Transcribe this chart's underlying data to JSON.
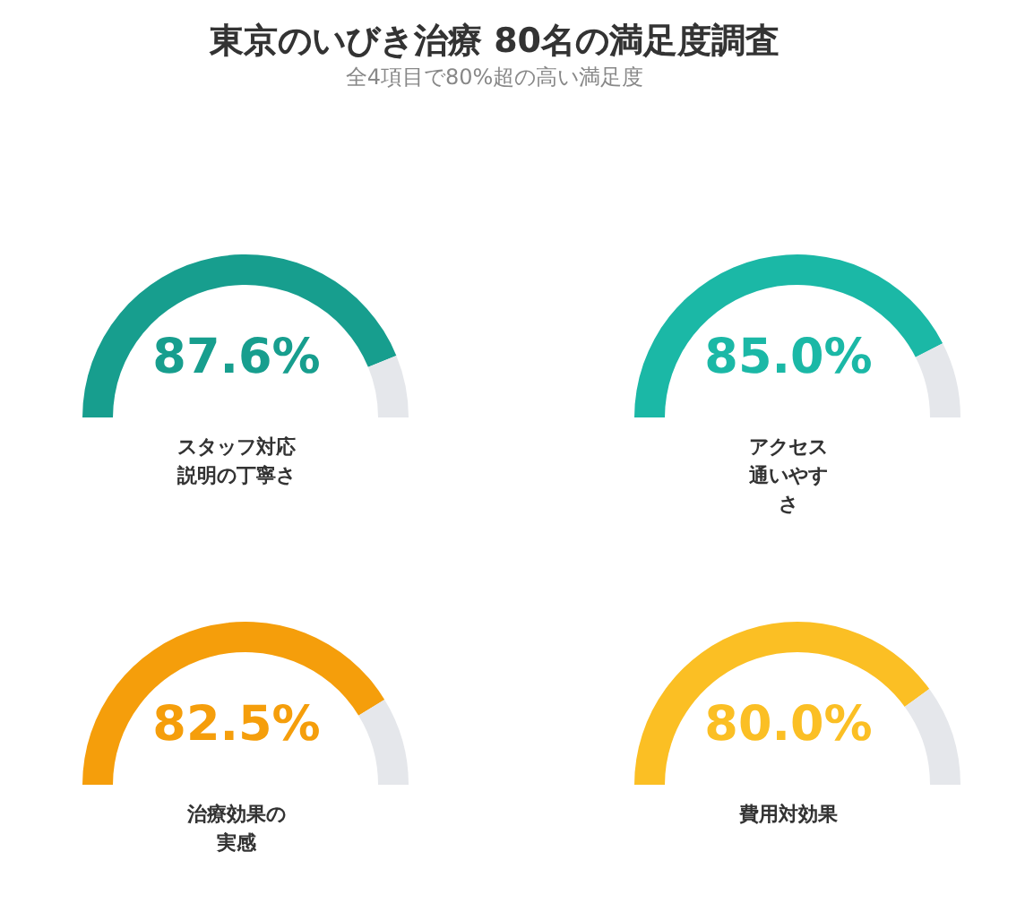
{
  "chart_data": [
    {
      "type": "other",
      "title": "東京のいびき治療 80名の満足度調査",
      "subtitle": "全4項目で80%超の高い満足度"
    },
    {
      "type": "donut",
      "title": "スタッフ対応説明の丁寧さ",
      "categories": [
        null,
        null
      ],
      "values": [
        87.6,
        12.4
      ],
      "colors": [
        "#179e8e",
        "#e5e7eb"
      ],
      "value_labels": [
        "87.6%",
        null
      ]
    },
    {
      "type": "donut",
      "title": "アクセス通いやすさ",
      "categories": [
        null,
        null
      ],
      "values": [
        85.0,
        15.0
      ],
      "colors": [
        "#1bb8a6",
        "#e5e7eb"
      ],
      "value_labels": [
        "85.0%",
        null
      ]
    },
    {
      "type": "donut",
      "title": "治療効果の実感",
      "categories": [
        null,
        null
      ],
      "values": [
        82.5,
        17.5
      ],
      "colors": [
        "#f59e0b",
        "#e5e7eb"
      ],
      "value_labels": [
        "82.5%",
        null
      ]
    },
    {
      "type": "donut",
      "title": "費用対効果",
      "categories": [
        null,
        null
      ],
      "values": [
        80.0,
        20.0
      ],
      "colors": [
        "#fbbf24",
        "#e5e7eb"
      ],
      "value_labels": [
        "80.0%",
        null
      ]
    }
  ]
}
